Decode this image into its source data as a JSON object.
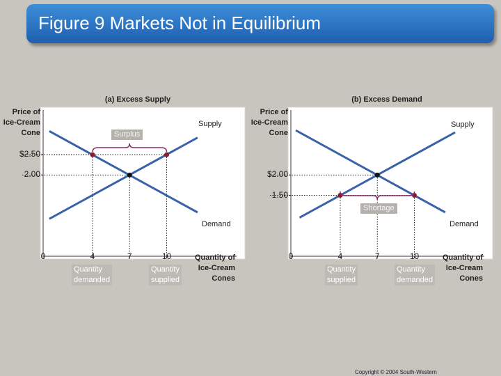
{
  "slide_title": "Figure 9 Markets Not in Equilibrium",
  "copyright": "Copyright © 2004 South-Western",
  "chart_data": [
    {
      "type": "line",
      "title": "(a) Excess Supply",
      "y_label": "Price of\nIce-Cream\nCone",
      "x_label": "Quantity of\nIce-Cream\nCones",
      "xlim": [
        0,
        16
      ],
      "ylim": [
        0,
        3.6
      ],
      "xticks": [
        0,
        4,
        7,
        10
      ],
      "yticks": [
        {
          "value": 2.5,
          "label": "$2.50"
        },
        {
          "value": 2,
          "label": "2.00"
        }
      ],
      "series": [
        {
          "name": "Supply",
          "color": "#3a62a8",
          "x": [
            0.5,
            12.5
          ],
          "values": [
            0.92,
            2.92
          ]
        },
        {
          "name": "Demand",
          "color": "#3a62a8",
          "x": [
            0.5,
            12.5
          ],
          "values": [
            3.08,
            1.08
          ]
        }
      ],
      "points": {
        "x": [
          4,
          7,
          10
        ],
        "values": [
          2.5,
          2,
          2.5
        ],
        "colors": [
          "#8a1c2c",
          "#111111",
          "#8a1c2c"
        ]
      },
      "gap_label": "Surplus",
      "annotations": [
        "Quantity\ndemanded",
        "Quantity\nsupplied"
      ]
    },
    {
      "type": "line",
      "title": "(b) Excess Demand",
      "y_label": "Price of\nIce-Cream\nCone",
      "x_label": "Quantity of\nIce-Cream\nCones",
      "xlim": [
        0,
        16
      ],
      "ylim": [
        0,
        3.6
      ],
      "xticks": [
        0,
        4,
        7,
        10
      ],
      "yticks": [
        {
          "value": 2,
          "label": "$2.00"
        },
        {
          "value": 1.5,
          "label": "1.50"
        }
      ],
      "series": [
        {
          "name": "Supply",
          "color": "#3a62a8",
          "x": [
            0.7,
            13.3
          ],
          "values": [
            0.95,
            3.05
          ]
        },
        {
          "name": "Demand",
          "color": "#3a62a8",
          "x": [
            0.4,
            12.5
          ],
          "values": [
            3.1,
            1.08
          ]
        }
      ],
      "points": {
        "x": [
          4,
          7,
          10
        ],
        "values": [
          1.5,
          2,
          1.5
        ],
        "colors": [
          "#8a1c2c",
          "#111111",
          "#8a1c2c"
        ]
      },
      "gap_label": "Shortage",
      "annotations": [
        "Quantity\nsupplied",
        "Quantity\ndemanded"
      ]
    }
  ]
}
